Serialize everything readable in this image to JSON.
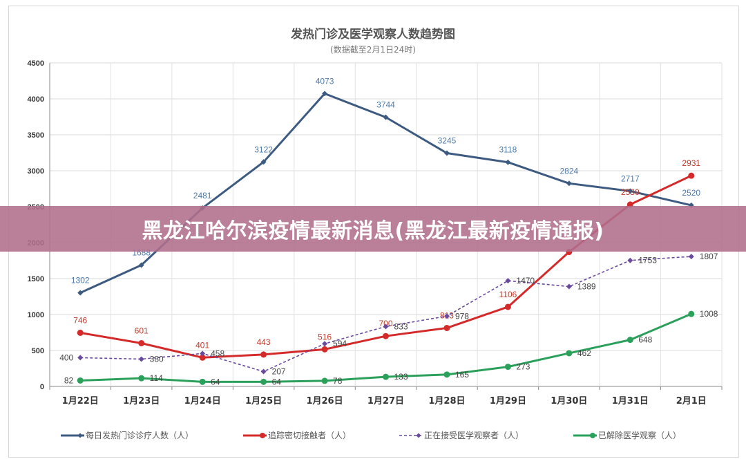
{
  "banner": {
    "text": "黑龙江哈尔滨疫情最新消息(黑龙江最新疫情通报)"
  },
  "chart_data": {
    "type": "line",
    "title": "发热门诊及医学观察人数趋势图",
    "subtitle": "(数据截至2月1日24时)",
    "categories": [
      "1月22日",
      "1月23日",
      "1月24日",
      "1月25日",
      "1月26日",
      "1月27日",
      "1月28日",
      "1月29日",
      "1月30日",
      "1月31日",
      "2月1日"
    ],
    "ylim": [
      0,
      4500
    ],
    "yticks": [
      0,
      500,
      1000,
      1500,
      2000,
      2500,
      3000,
      3500,
      4000,
      4500
    ],
    "grid": true,
    "legend_position": "bottom",
    "series": [
      {
        "name": "每日发热门诊诊疗人数（人）",
        "color": "#3d5a80",
        "style": "solid",
        "marker": "diamond",
        "values": [
          1302,
          1688,
          2481,
          3122,
          4073,
          3744,
          3245,
          3118,
          2824,
          2717,
          2520
        ],
        "labels": [
          "1302",
          "1688",
          "2481",
          "3122",
          "4073",
          "3744",
          "3245",
          "3118",
          "2824",
          "2717",
          "2520"
        ]
      },
      {
        "name": "追踪密切接触者（人）",
        "color": "#d42a2a",
        "style": "solid",
        "marker": "circle",
        "values": [
          746,
          601,
          401,
          443,
          516,
          700,
          813,
          1106,
          1870,
          2530,
          2931
        ],
        "labels": [
          "746",
          "601",
          "401",
          "443",
          "516",
          "700",
          "813",
          "1106",
          "",
          "2530",
          "2931"
        ]
      },
      {
        "name": "正在接受医学观察者（人）",
        "color": "#6a4a9c",
        "style": "dashed",
        "marker": "diamond",
        "values": [
          400,
          380,
          458,
          207,
          594,
          833,
          978,
          1470,
          1389,
          1753,
          1807
        ],
        "labels": [
          "400",
          "380",
          "458",
          "207",
          "594",
          "833",
          "978",
          "1470",
          "1389",
          "1753",
          "1807"
        ]
      },
      {
        "name": "已解除医学观察（人）",
        "color": "#2aa05a",
        "style": "solid",
        "marker": "circle",
        "values": [
          82,
          114,
          64,
          64,
          78,
          133,
          165,
          273,
          462,
          648,
          1008
        ],
        "labels": [
          "82",
          "114",
          "64",
          "64",
          "78",
          "133",
          "165",
          "273",
          "462",
          "648",
          "1008"
        ]
      }
    ]
  }
}
